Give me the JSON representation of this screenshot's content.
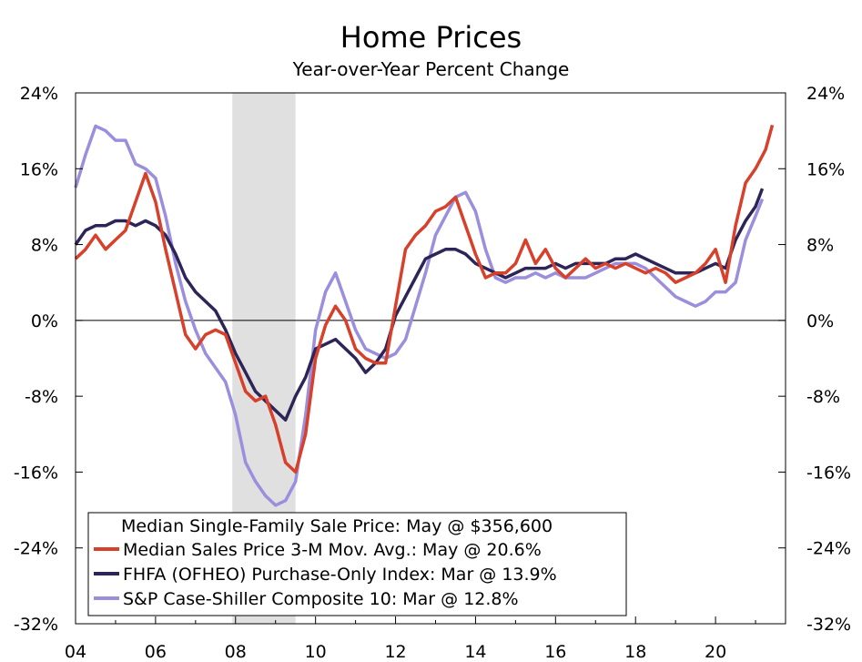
{
  "chart_data": {
    "type": "line",
    "title": "Home Prices",
    "subtitle": "Year-over-Year Percent Change",
    "xlabel": "",
    "ylabel": "",
    "x_range": [
      2004,
      2021.75
    ],
    "ylim": [
      -32,
      24
    ],
    "y_ticks": [
      -32,
      -24,
      -16,
      -8,
      0,
      8,
      16,
      24
    ],
    "y_tick_labels": [
      "-32%",
      "-24%",
      "-16%",
      "-8%",
      "0%",
      "8%",
      "16%",
      "24%"
    ],
    "x_ticks": [
      2004,
      2006,
      2008,
      2010,
      2012,
      2014,
      2016,
      2018,
      2020
    ],
    "x_tick_labels": [
      "04",
      "06",
      "08",
      "10",
      "12",
      "14",
      "16",
      "18",
      "20"
    ],
    "recession_shading": [
      [
        2007.92,
        2009.5
      ]
    ],
    "zero_line": true,
    "grid": false,
    "legend": {
      "placement": "bottom-left",
      "note": "Median Single-Family Sale Price: May @ $356,600"
    },
    "series": [
      {
        "name": "Median Sales Price 3-M Mov. Avg.: May @ 20.6%",
        "color": "#d7402b",
        "points": [
          [
            2004.0,
            6.5
          ],
          [
            2004.25,
            7.5
          ],
          [
            2004.5,
            9.0
          ],
          [
            2004.75,
            7.5
          ],
          [
            2005.0,
            8.5
          ],
          [
            2005.25,
            9.5
          ],
          [
            2005.5,
            12.5
          ],
          [
            2005.75,
            15.5
          ],
          [
            2006.0,
            12.5
          ],
          [
            2006.25,
            7.5
          ],
          [
            2006.5,
            3.0
          ],
          [
            2006.75,
            -1.5
          ],
          [
            2007.0,
            -3.0
          ],
          [
            2007.25,
            -1.5
          ],
          [
            2007.5,
            -1.0
          ],
          [
            2007.75,
            -1.5
          ],
          [
            2008.0,
            -4.5
          ],
          [
            2008.25,
            -7.5
          ],
          [
            2008.5,
            -8.5
          ],
          [
            2008.75,
            -8.0
          ],
          [
            2009.0,
            -11.0
          ],
          [
            2009.25,
            -15.0
          ],
          [
            2009.5,
            -16.0
          ],
          [
            2009.75,
            -12.0
          ],
          [
            2010.0,
            -4.0
          ],
          [
            2010.25,
            -0.5
          ],
          [
            2010.5,
            1.5
          ],
          [
            2010.75,
            0.0
          ],
          [
            2011.0,
            -3.0
          ],
          [
            2011.25,
            -4.0
          ],
          [
            2011.5,
            -4.5
          ],
          [
            2011.75,
            -4.5
          ],
          [
            2012.0,
            1.5
          ],
          [
            2012.25,
            7.5
          ],
          [
            2012.5,
            9.0
          ],
          [
            2012.75,
            10.0
          ],
          [
            2013.0,
            11.5
          ],
          [
            2013.25,
            12.0
          ],
          [
            2013.5,
            13.0
          ],
          [
            2013.75,
            10.0
          ],
          [
            2014.0,
            7.0
          ],
          [
            2014.25,
            4.5
          ],
          [
            2014.5,
            5.0
          ],
          [
            2014.75,
            5.0
          ],
          [
            2015.0,
            6.0
          ],
          [
            2015.25,
            8.5
          ],
          [
            2015.5,
            6.0
          ],
          [
            2015.75,
            7.5
          ],
          [
            2016.0,
            5.5
          ],
          [
            2016.25,
            4.5
          ],
          [
            2016.5,
            5.5
          ],
          [
            2016.75,
            6.5
          ],
          [
            2017.0,
            5.5
          ],
          [
            2017.25,
            6.0
          ],
          [
            2017.5,
            5.5
          ],
          [
            2017.75,
            6.0
          ],
          [
            2018.0,
            5.5
          ],
          [
            2018.25,
            5.0
          ],
          [
            2018.5,
            5.5
          ],
          [
            2018.75,
            5.0
          ],
          [
            2019.0,
            4.0
          ],
          [
            2019.25,
            4.5
          ],
          [
            2019.5,
            5.0
          ],
          [
            2019.75,
            6.0
          ],
          [
            2020.0,
            7.5
          ],
          [
            2020.25,
            4.0
          ],
          [
            2020.5,
            10.0
          ],
          [
            2020.75,
            14.5
          ],
          [
            2021.0,
            16.0
          ],
          [
            2021.25,
            18.0
          ],
          [
            2021.42,
            20.6
          ]
        ]
      },
      {
        "name": "FHFA (OFHEO) Purchase-Only Index: Mar @ 13.9%",
        "color": "#2d2557",
        "points": [
          [
            2004.0,
            8.0
          ],
          [
            2004.25,
            9.5
          ],
          [
            2004.5,
            10.0
          ],
          [
            2004.75,
            10.0
          ],
          [
            2005.0,
            10.5
          ],
          [
            2005.25,
            10.5
          ],
          [
            2005.5,
            10.0
          ],
          [
            2005.75,
            10.5
          ],
          [
            2006.0,
            10.0
          ],
          [
            2006.25,
            9.0
          ],
          [
            2006.5,
            7.0
          ],
          [
            2006.75,
            4.5
          ],
          [
            2007.0,
            3.0
          ],
          [
            2007.25,
            2.0
          ],
          [
            2007.5,
            1.0
          ],
          [
            2007.75,
            -1.0
          ],
          [
            2008.0,
            -3.5
          ],
          [
            2008.25,
            -5.5
          ],
          [
            2008.5,
            -7.5
          ],
          [
            2008.75,
            -8.5
          ],
          [
            2009.0,
            -9.5
          ],
          [
            2009.25,
            -10.5
          ],
          [
            2009.5,
            -8.0
          ],
          [
            2009.75,
            -6.0
          ],
          [
            2010.0,
            -3.0
          ],
          [
            2010.25,
            -2.5
          ],
          [
            2010.5,
            -2.0
          ],
          [
            2010.75,
            -3.0
          ],
          [
            2011.0,
            -4.0
          ],
          [
            2011.25,
            -5.5
          ],
          [
            2011.5,
            -4.5
          ],
          [
            2011.75,
            -3.0
          ],
          [
            2012.0,
            0.5
          ],
          [
            2012.25,
            2.5
          ],
          [
            2012.5,
            4.5
          ],
          [
            2012.75,
            6.5
          ],
          [
            2013.0,
            7.0
          ],
          [
            2013.25,
            7.5
          ],
          [
            2013.5,
            7.5
          ],
          [
            2013.75,
            7.0
          ],
          [
            2014.0,
            6.0
          ],
          [
            2014.25,
            5.5
          ],
          [
            2014.5,
            5.0
          ],
          [
            2014.75,
            4.5
          ],
          [
            2015.0,
            5.0
          ],
          [
            2015.25,
            5.5
          ],
          [
            2015.5,
            5.5
          ],
          [
            2015.75,
            5.5
          ],
          [
            2016.0,
            6.0
          ],
          [
            2016.25,
            5.5
          ],
          [
            2016.5,
            6.0
          ],
          [
            2016.75,
            6.0
          ],
          [
            2017.0,
            6.0
          ],
          [
            2017.25,
            6.0
          ],
          [
            2017.5,
            6.5
          ],
          [
            2017.75,
            6.5
          ],
          [
            2018.0,
            7.0
          ],
          [
            2018.25,
            6.5
          ],
          [
            2018.5,
            6.0
          ],
          [
            2018.75,
            5.5
          ],
          [
            2019.0,
            5.0
          ],
          [
            2019.25,
            5.0
          ],
          [
            2019.5,
            5.0
          ],
          [
            2019.75,
            5.5
          ],
          [
            2020.0,
            6.0
          ],
          [
            2020.25,
            5.5
          ],
          [
            2020.5,
            8.5
          ],
          [
            2020.75,
            10.5
          ],
          [
            2021.0,
            12.0
          ],
          [
            2021.17,
            13.9
          ]
        ]
      },
      {
        "name": "S&P Case-Shiller Composite 10: Mar @ 12.8%",
        "color": "#9b8fdd",
        "points": [
          [
            2004.0,
            14.0
          ],
          [
            2004.25,
            17.5
          ],
          [
            2004.5,
            20.5
          ],
          [
            2004.75,
            20.0
          ],
          [
            2005.0,
            19.0
          ],
          [
            2005.25,
            19.0
          ],
          [
            2005.5,
            16.5
          ],
          [
            2005.75,
            16.0
          ],
          [
            2006.0,
            15.0
          ],
          [
            2006.25,
            11.0
          ],
          [
            2006.5,
            6.0
          ],
          [
            2006.75,
            2.0
          ],
          [
            2007.0,
            -1.0
          ],
          [
            2007.25,
            -3.5
          ],
          [
            2007.5,
            -5.0
          ],
          [
            2007.75,
            -6.5
          ],
          [
            2008.0,
            -10.0
          ],
          [
            2008.25,
            -15.0
          ],
          [
            2008.5,
            -17.0
          ],
          [
            2008.75,
            -18.5
          ],
          [
            2009.0,
            -19.5
          ],
          [
            2009.25,
            -19.0
          ],
          [
            2009.5,
            -17.0
          ],
          [
            2009.75,
            -10.0
          ],
          [
            2010.0,
            -1.0
          ],
          [
            2010.25,
            3.0
          ],
          [
            2010.5,
            5.0
          ],
          [
            2010.75,
            2.0
          ],
          [
            2011.0,
            -1.0
          ],
          [
            2011.25,
            -3.0
          ],
          [
            2011.5,
            -3.5
          ],
          [
            2011.75,
            -4.0
          ],
          [
            2012.0,
            -3.5
          ],
          [
            2012.25,
            -2.0
          ],
          [
            2012.5,
            1.5
          ],
          [
            2012.75,
            5.0
          ],
          [
            2013.0,
            9.0
          ],
          [
            2013.25,
            11.0
          ],
          [
            2013.5,
            13.0
          ],
          [
            2013.75,
            13.5
          ],
          [
            2014.0,
            11.5
          ],
          [
            2014.25,
            7.5
          ],
          [
            2014.5,
            4.5
          ],
          [
            2014.75,
            4.0
          ],
          [
            2015.0,
            4.5
          ],
          [
            2015.25,
            4.5
          ],
          [
            2015.5,
            5.0
          ],
          [
            2015.75,
            4.5
          ],
          [
            2016.0,
            5.0
          ],
          [
            2016.25,
            4.5
          ],
          [
            2016.5,
            4.5
          ],
          [
            2016.75,
            4.5
          ],
          [
            2017.0,
            5.0
          ],
          [
            2017.25,
            5.5
          ],
          [
            2017.5,
            6.0
          ],
          [
            2017.75,
            6.0
          ],
          [
            2018.0,
            6.0
          ],
          [
            2018.25,
            5.5
          ],
          [
            2018.5,
            4.5
          ],
          [
            2018.75,
            3.5
          ],
          [
            2019.0,
            2.5
          ],
          [
            2019.25,
            2.0
          ],
          [
            2019.5,
            1.5
          ],
          [
            2019.75,
            2.0
          ],
          [
            2020.0,
            3.0
          ],
          [
            2020.25,
            3.0
          ],
          [
            2020.5,
            4.0
          ],
          [
            2020.75,
            8.5
          ],
          [
            2021.0,
            11.0
          ],
          [
            2021.17,
            12.8
          ]
        ]
      }
    ]
  }
}
